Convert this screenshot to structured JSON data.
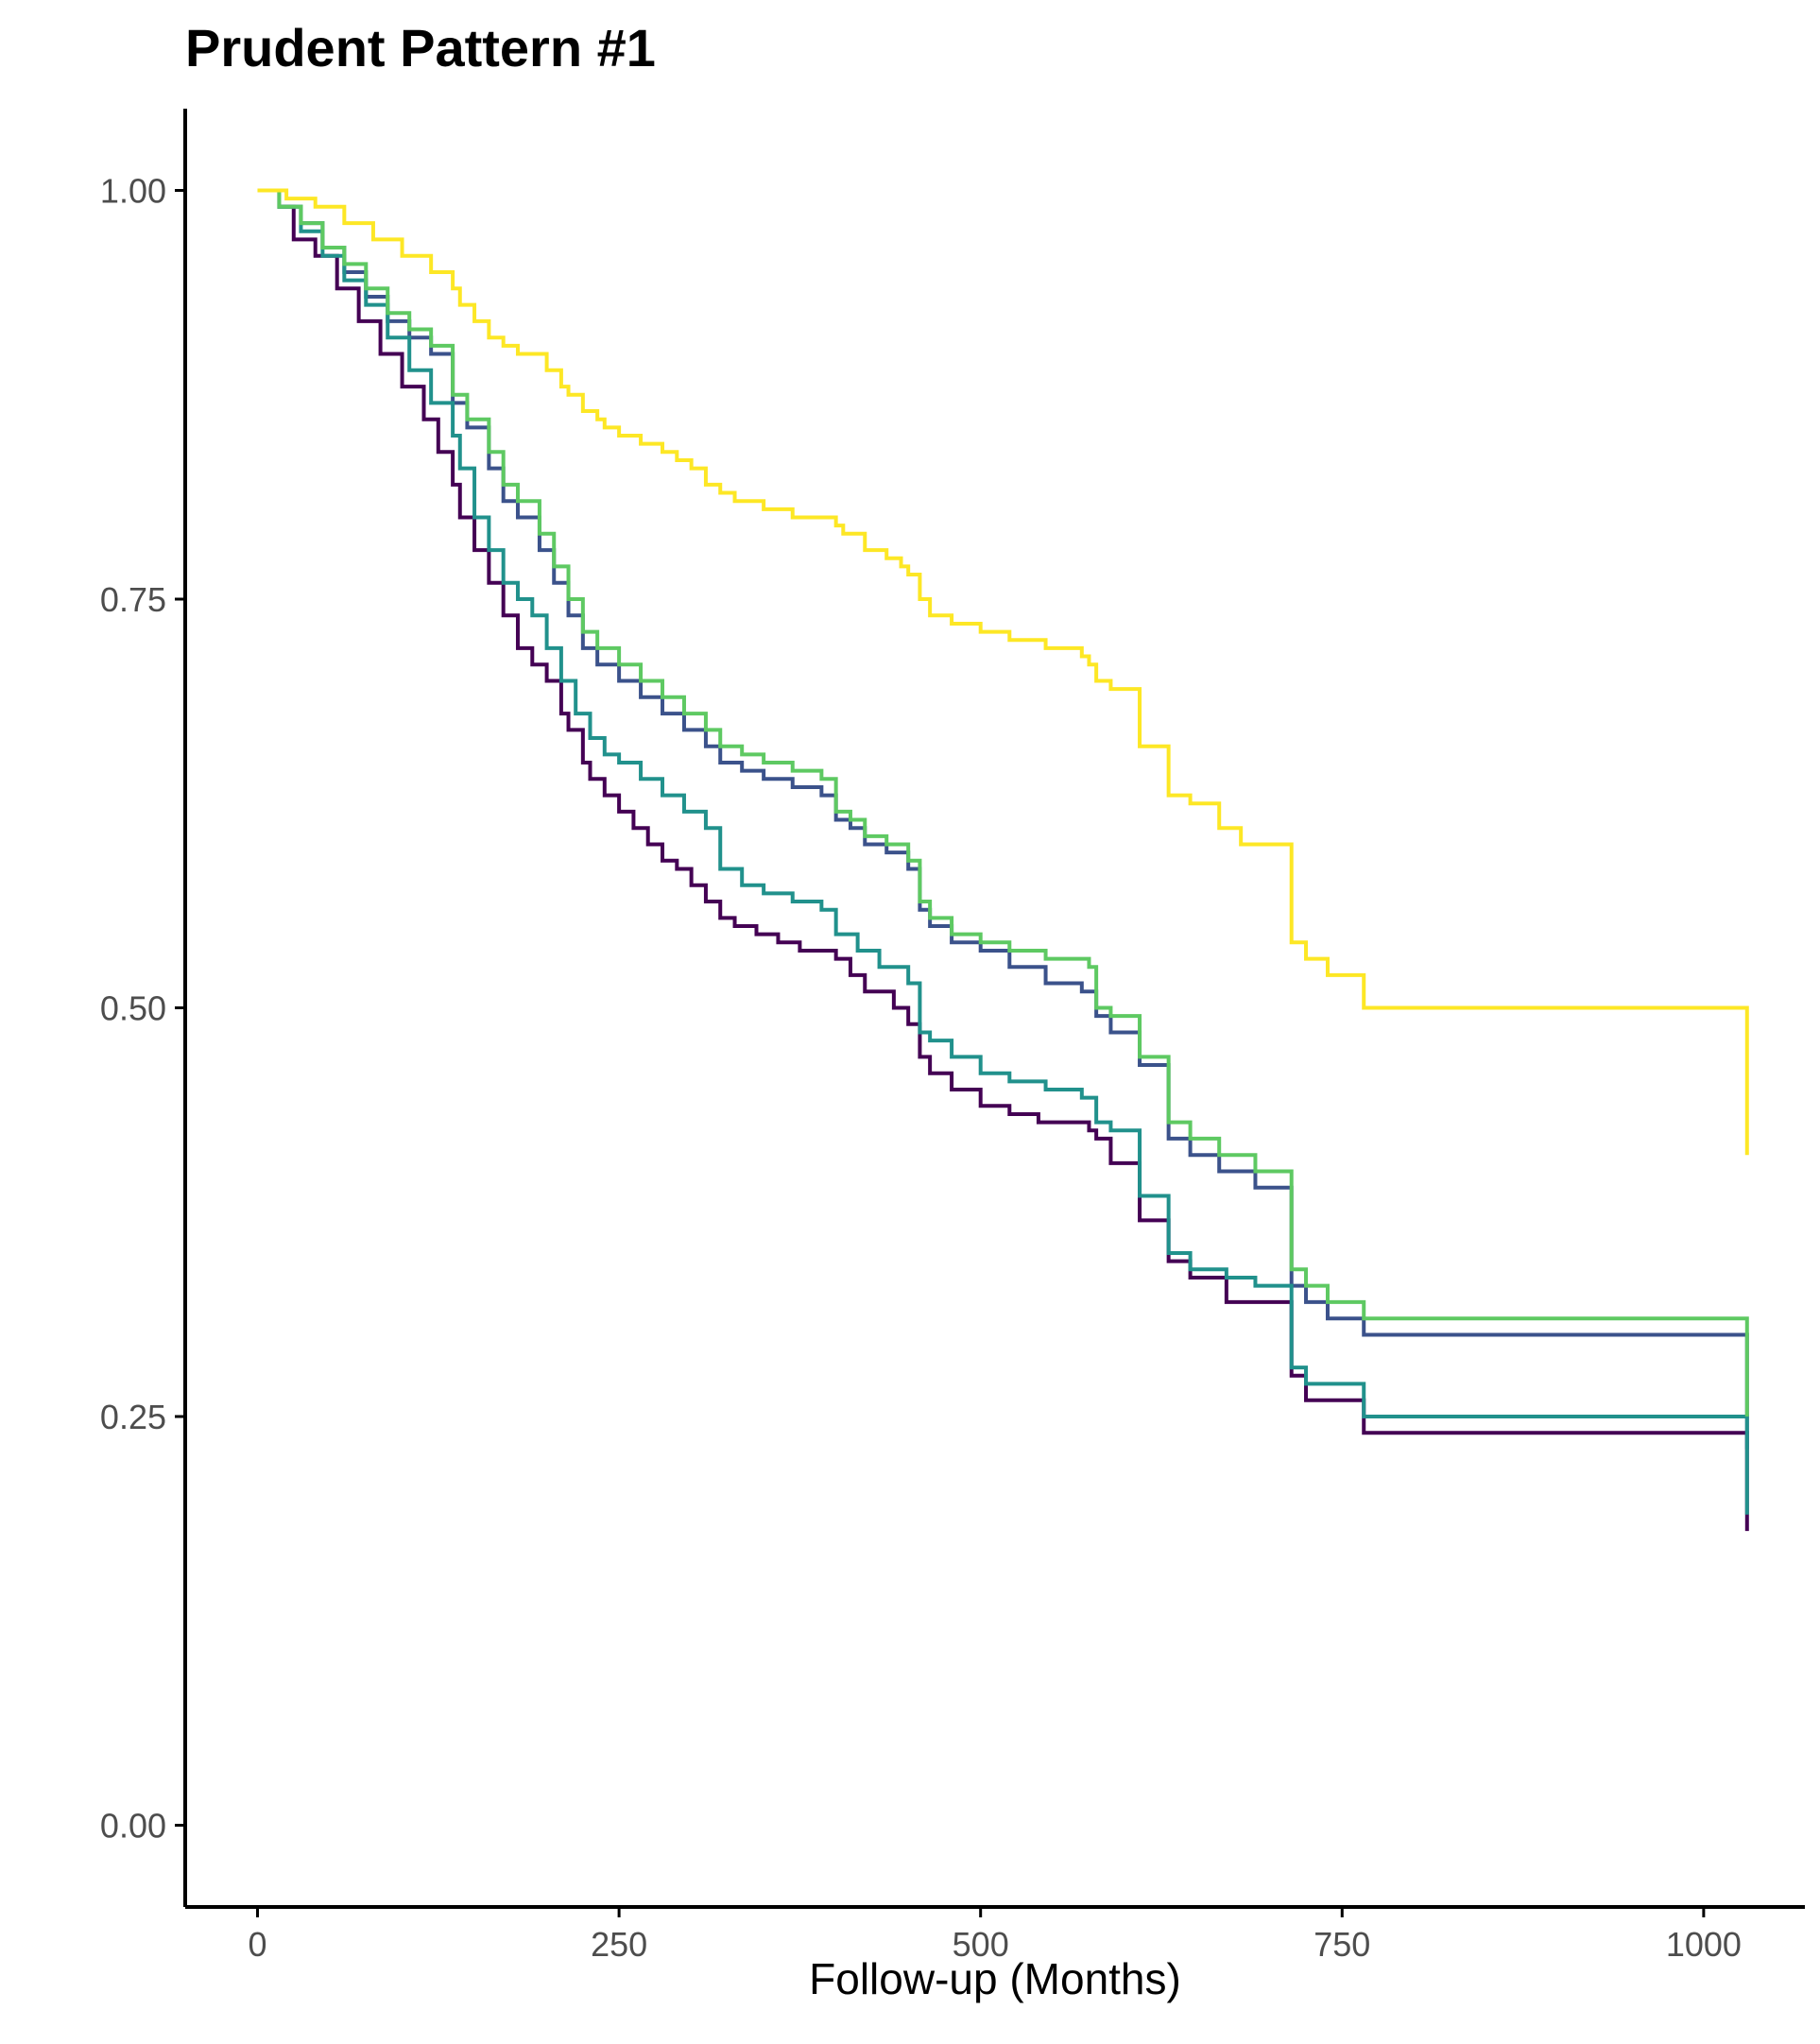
{
  "chart_data": {
    "type": "line",
    "subtype": "step",
    "title": "Prudent Pattern #1",
    "xlabel": "Follow-up (Months)",
    "ylabel": "",
    "xlim": [
      -50,
      1070
    ],
    "ylim": [
      -0.05,
      1.05
    ],
    "x_ticks": [
      0,
      250,
      500,
      750,
      1000
    ],
    "y_ticks": [
      0.0,
      0.25,
      0.5,
      0.75,
      1.0
    ],
    "x_tick_labels": [
      "0",
      "250",
      "500",
      "750",
      "1000"
    ],
    "y_tick_labels": [
      "0.00",
      "0.25",
      "0.50",
      "0.75",
      "1.00"
    ],
    "grid": false,
    "legend": "none",
    "series": [
      {
        "color": "#440154",
        "x": [
          0,
          15,
          25,
          40,
          55,
          70,
          85,
          100,
          115,
          125,
          135,
          140,
          150,
          160,
          170,
          180,
          190,
          200,
          210,
          215,
          225,
          230,
          240,
          250,
          260,
          270,
          280,
          290,
          300,
          310,
          320,
          330,
          345,
          360,
          375,
          400,
          410,
          420,
          440,
          450,
          458,
          465,
          480,
          500,
          520,
          540,
          560,
          575,
          580,
          590,
          610,
          630,
          645,
          670,
          690,
          715,
          725,
          765,
          1030
        ],
        "y": [
          1.0,
          0.99,
          0.97,
          0.96,
          0.94,
          0.92,
          0.9,
          0.88,
          0.86,
          0.84,
          0.82,
          0.8,
          0.78,
          0.76,
          0.74,
          0.72,
          0.71,
          0.7,
          0.68,
          0.67,
          0.65,
          0.64,
          0.63,
          0.62,
          0.61,
          0.6,
          0.59,
          0.585,
          0.575,
          0.565,
          0.555,
          0.55,
          0.545,
          0.54,
          0.535,
          0.53,
          0.52,
          0.51,
          0.5,
          0.49,
          0.47,
          0.46,
          0.45,
          0.44,
          0.435,
          0.43,
          0.43,
          0.425,
          0.42,
          0.405,
          0.37,
          0.345,
          0.335,
          0.32,
          0.32,
          0.275,
          0.26,
          0.24,
          0.18
        ]
      },
      {
        "color": "#3b528b",
        "x": [
          0,
          15,
          30,
          45,
          60,
          75,
          90,
          105,
          120,
          135,
          145,
          160,
          170,
          180,
          195,
          205,
          215,
          225,
          235,
          250,
          265,
          280,
          295,
          310,
          320,
          335,
          350,
          370,
          390,
          400,
          410,
          420,
          435,
          450,
          458,
          465,
          480,
          500,
          520,
          545,
          570,
          580,
          590,
          610,
          630,
          645,
          665,
          690,
          715,
          725,
          740,
          765,
          1030
        ],
        "y": [
          1.0,
          0.99,
          0.98,
          0.965,
          0.95,
          0.935,
          0.92,
          0.91,
          0.9,
          0.87,
          0.855,
          0.83,
          0.81,
          0.8,
          0.78,
          0.76,
          0.74,
          0.72,
          0.71,
          0.7,
          0.69,
          0.68,
          0.67,
          0.66,
          0.65,
          0.645,
          0.64,
          0.635,
          0.63,
          0.615,
          0.61,
          0.6,
          0.595,
          0.585,
          0.56,
          0.55,
          0.54,
          0.535,
          0.525,
          0.515,
          0.51,
          0.495,
          0.485,
          0.465,
          0.42,
          0.41,
          0.4,
          0.39,
          0.33,
          0.32,
          0.31,
          0.3,
          0.23
        ]
      },
      {
        "color": "#21918c",
        "x": [
          0,
          15,
          30,
          45,
          60,
          75,
          90,
          105,
          120,
          135,
          140,
          150,
          160,
          170,
          180,
          190,
          200,
          210,
          220,
          230,
          240,
          250,
          265,
          280,
          295,
          310,
          320,
          335,
          350,
          370,
          390,
          400,
          415,
          430,
          450,
          458,
          465,
          480,
          500,
          520,
          545,
          570,
          580,
          590,
          610,
          630,
          645,
          670,
          690,
          715,
          725,
          765,
          1030
        ],
        "y": [
          1.0,
          0.99,
          0.975,
          0.96,
          0.945,
          0.93,
          0.91,
          0.89,
          0.87,
          0.85,
          0.83,
          0.8,
          0.78,
          0.76,
          0.75,
          0.74,
          0.72,
          0.7,
          0.68,
          0.665,
          0.655,
          0.65,
          0.64,
          0.63,
          0.62,
          0.61,
          0.585,
          0.575,
          0.57,
          0.565,
          0.56,
          0.545,
          0.535,
          0.525,
          0.515,
          0.485,
          0.48,
          0.47,
          0.46,
          0.455,
          0.45,
          0.445,
          0.43,
          0.425,
          0.385,
          0.35,
          0.34,
          0.335,
          0.33,
          0.28,
          0.27,
          0.25,
          0.19
        ]
      },
      {
        "color": "#5ec962",
        "x": [
          0,
          15,
          30,
          45,
          60,
          75,
          90,
          105,
          120,
          135,
          145,
          160,
          170,
          180,
          195,
          205,
          215,
          225,
          235,
          250,
          265,
          280,
          295,
          310,
          320,
          335,
          350,
          370,
          390,
          400,
          410,
          420,
          435,
          450,
          458,
          465,
          480,
          500,
          520,
          545,
          575,
          580,
          590,
          610,
          630,
          645,
          665,
          690,
          715,
          725,
          740,
          765,
          1030
        ],
        "y": [
          1.0,
          0.99,
          0.98,
          0.965,
          0.955,
          0.94,
          0.925,
          0.915,
          0.905,
          0.875,
          0.86,
          0.84,
          0.82,
          0.81,
          0.79,
          0.77,
          0.75,
          0.73,
          0.72,
          0.71,
          0.7,
          0.69,
          0.68,
          0.67,
          0.66,
          0.655,
          0.65,
          0.645,
          0.64,
          0.62,
          0.615,
          0.605,
          0.6,
          0.59,
          0.565,
          0.555,
          0.545,
          0.54,
          0.535,
          0.53,
          0.525,
          0.5,
          0.495,
          0.47,
          0.43,
          0.42,
          0.41,
          0.4,
          0.34,
          0.33,
          0.32,
          0.31,
          0.25
        ]
      },
      {
        "color": "#fde725",
        "x": [
          0,
          20,
          40,
          60,
          80,
          100,
          120,
          135,
          140,
          150,
          160,
          170,
          180,
          200,
          210,
          215,
          225,
          235,
          240,
          250,
          265,
          280,
          290,
          300,
          310,
          320,
          330,
          350,
          370,
          385,
          400,
          405,
          420,
          435,
          445,
          450,
          458,
          465,
          480,
          500,
          520,
          545,
          570,
          575,
          580,
          590,
          610,
          630,
          645,
          665,
          680,
          690,
          715,
          725,
          740,
          765,
          1030
        ],
        "y": [
          1.0,
          0.995,
          0.99,
          0.98,
          0.97,
          0.96,
          0.95,
          0.94,
          0.93,
          0.92,
          0.91,
          0.905,
          0.9,
          0.89,
          0.88,
          0.875,
          0.865,
          0.86,
          0.855,
          0.85,
          0.845,
          0.84,
          0.835,
          0.83,
          0.82,
          0.815,
          0.81,
          0.805,
          0.8,
          0.8,
          0.795,
          0.79,
          0.78,
          0.775,
          0.77,
          0.765,
          0.75,
          0.74,
          0.735,
          0.73,
          0.725,
          0.72,
          0.715,
          0.71,
          0.7,
          0.695,
          0.66,
          0.63,
          0.625,
          0.61,
          0.6,
          0.6,
          0.54,
          0.53,
          0.52,
          0.5,
          0.41
        ]
      }
    ]
  }
}
